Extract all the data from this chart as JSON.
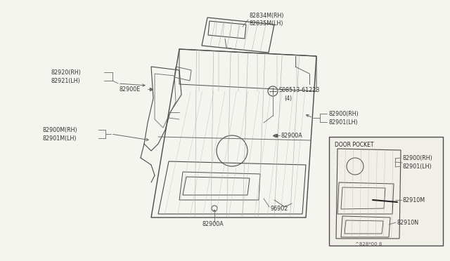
{
  "bg_color": "#f5f5f0",
  "line_color": "#4a4a4a",
  "thin_color": "#666666",
  "figsize": [
    6.4,
    3.72
  ],
  "dpi": 100,
  "labels": {
    "82834M_RH": "82834M(RH)",
    "82835M_LH": "82835M(LH)",
    "82920_RH": "82920(RH)",
    "82921_LH": "82921(LH)",
    "82900E": "82900E",
    "08513": "S08513-61223",
    "08513_4": "(4)",
    "82900_RH": "82900(RH)",
    "82901_LH": "82901(LH)",
    "82900A_top": "82900A",
    "82900M_RH": "82900M(RH)",
    "82901M_LH": "82901M(LH)",
    "96902": "96902",
    "82900A_bot": "82900A",
    "door_pocket_title": "DOOR POCKET",
    "82900_RH2": "82900(RH)",
    "82901_LH2": "82901(LH)",
    "82910M": "82910M",
    "82910N": "82910N",
    "part_num": "^828*00 8"
  }
}
